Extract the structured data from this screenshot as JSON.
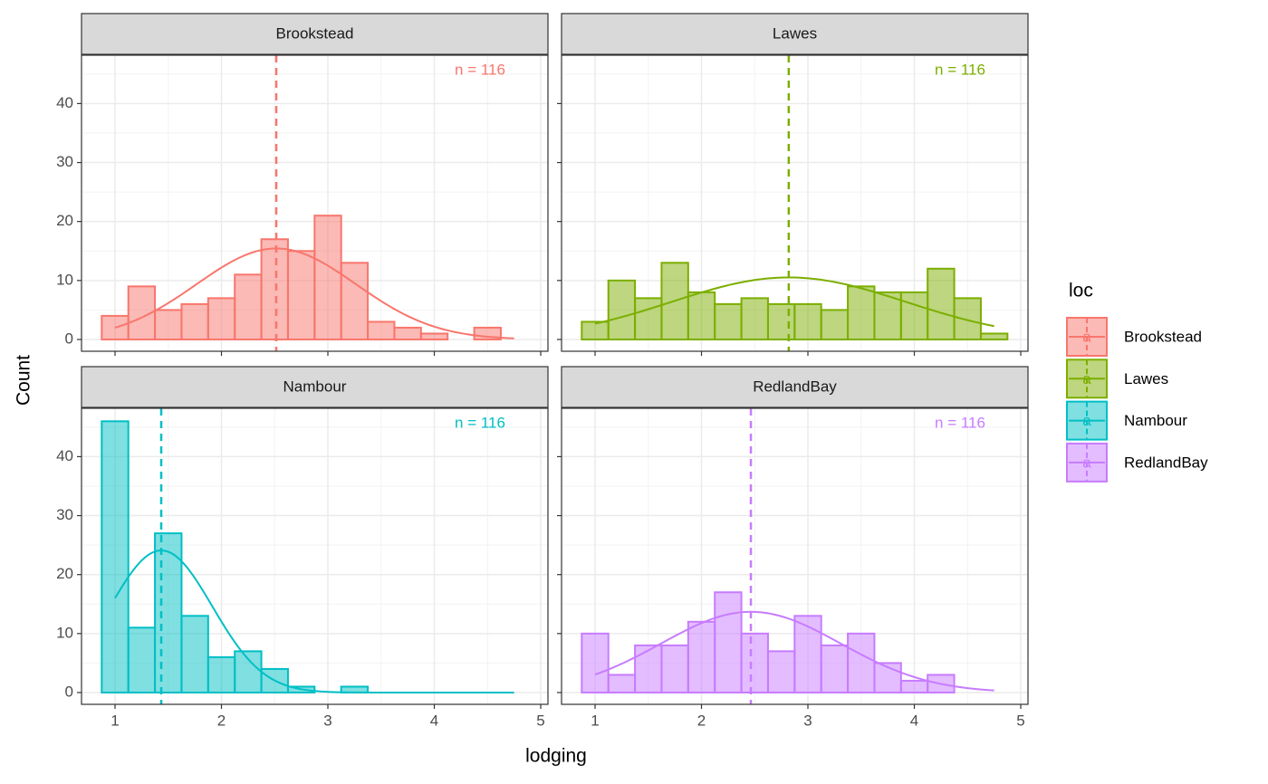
{
  "chart_data": {
    "type": "histogram",
    "x_label": "lodging",
    "y_label": "Count",
    "legend_title": "loc",
    "key_label": "a",
    "legend_position": "right",
    "grid": true,
    "bins": [
      0.875,
      1.125,
      1.375,
      1.625,
      1.875,
      2.125,
      2.375,
      2.625,
      2.875,
      3.125,
      3.375,
      3.625,
      3.875,
      4.125,
      4.375,
      4.625,
      4.875
    ],
    "xlim": [
      0.685,
      5.068
    ],
    "xticks": [
      1,
      2,
      3,
      4,
      5
    ],
    "ylim": [
      -2,
      48.2
    ],
    "yticks": [
      0,
      10,
      20,
      30,
      40
    ],
    "series": [
      {
        "name": "Brookstead",
        "color": "#F8766D",
        "annotation": "n = 116",
        "mean": 2.515,
        "sd": 0.75,
        "values": [
          4,
          9,
          5,
          6,
          7,
          11,
          17,
          15,
          21,
          13,
          3,
          2,
          1,
          0,
          2,
          0
        ]
      },
      {
        "name": "Lawes",
        "color": "#7CAE00",
        "annotation": "n = 116",
        "mean": 2.82,
        "sd": 1.1,
        "values": [
          3,
          10,
          7,
          13,
          8,
          6,
          7,
          6,
          6,
          5,
          9,
          8,
          8,
          12,
          7,
          1
        ]
      },
      {
        "name": "Nambour",
        "color": "#00BFC4",
        "annotation": "n = 116",
        "mean": 1.434,
        "sd": 0.48,
        "values": [
          46,
          11,
          27,
          13,
          6,
          7,
          4,
          1,
          0,
          1,
          0,
          0,
          0,
          0,
          0,
          0
        ]
      },
      {
        "name": "RedlandBay",
        "color": "#C77CFF",
        "annotation": "n = 116",
        "mean": 2.464,
        "sd": 0.845,
        "values": [
          10,
          3,
          8,
          8,
          12,
          17,
          10,
          7,
          13,
          8,
          10,
          5,
          2,
          3,
          0,
          0
        ]
      }
    ]
  }
}
